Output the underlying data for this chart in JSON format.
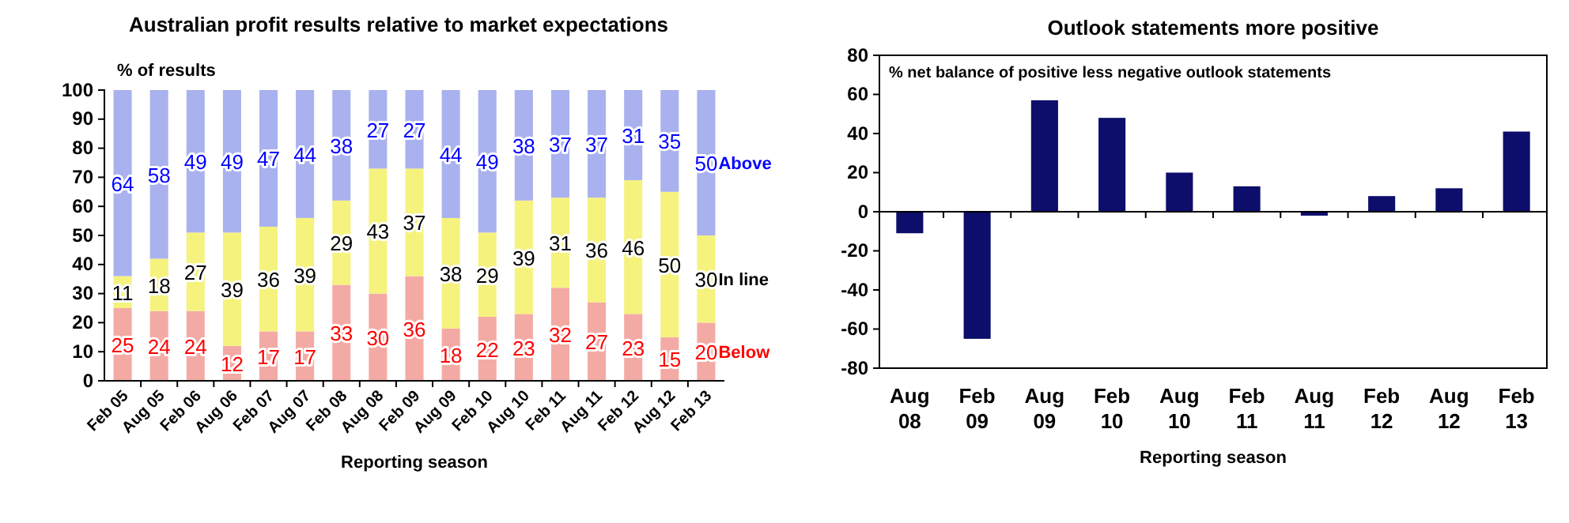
{
  "chart_data": [
    {
      "type": "bar",
      "title": "Australian profit results relative to market expectations",
      "ylabel": "% of results",
      "xlabel": "Reporting season",
      "categories": [
        "Feb 05",
        "Aug 05",
        "Feb 06",
        "Aug 06",
        "Feb 07",
        "Aug 07",
        "Feb 08",
        "Aug 08",
        "Feb 09",
        "Aug 09",
        "Feb 10",
        "Aug 10",
        "Feb 11",
        "Aug 11",
        "Feb 12",
        "Aug 12",
        "Feb 13"
      ],
      "stacked": true,
      "data_labels": true,
      "ylim": [
        0,
        100
      ],
      "yticks": [
        0,
        10,
        20,
        30,
        40,
        50,
        60,
        70,
        80,
        90,
        100
      ],
      "series": [
        {
          "name": "Below",
          "color": "#f4aaa4",
          "values": [
            25,
            24,
            24,
            12,
            17,
            17,
            33,
            30,
            36,
            18,
            22,
            23,
            32,
            27,
            23,
            15,
            20
          ]
        },
        {
          "name": "In line",
          "color": "#f6f27e",
          "values": [
            11,
            18,
            27,
            39,
            36,
            39,
            29,
            43,
            37,
            38,
            29,
            39,
            31,
            36,
            46,
            50,
            30
          ]
        },
        {
          "name": "Above",
          "color": "#a9b2ee",
          "values": [
            64,
            58,
            49,
            49,
            47,
            44,
            38,
            27,
            27,
            44,
            49,
            38,
            37,
            37,
            31,
            35,
            50
          ]
        }
      ]
    },
    {
      "type": "bar",
      "title": "Outlook statements more positive",
      "ylabel": "% net balance of positive less negative outlook statements",
      "xlabel": "Reporting season",
      "categories": [
        "Aug 08",
        "Feb 09",
        "Aug 09",
        "Feb 10",
        "Aug 10",
        "Feb 11",
        "Aug 11",
        "Feb 12",
        "Aug 12",
        "Feb 13"
      ],
      "values": [
        -11,
        -65,
        57,
        48,
        20,
        13,
        -2,
        8,
        12,
        41
      ],
      "color": "#0d0d6b",
      "ylim": [
        -80,
        80
      ],
      "yticks": [
        -80,
        -60,
        -40,
        -20,
        0,
        20,
        40,
        60,
        80
      ]
    }
  ]
}
